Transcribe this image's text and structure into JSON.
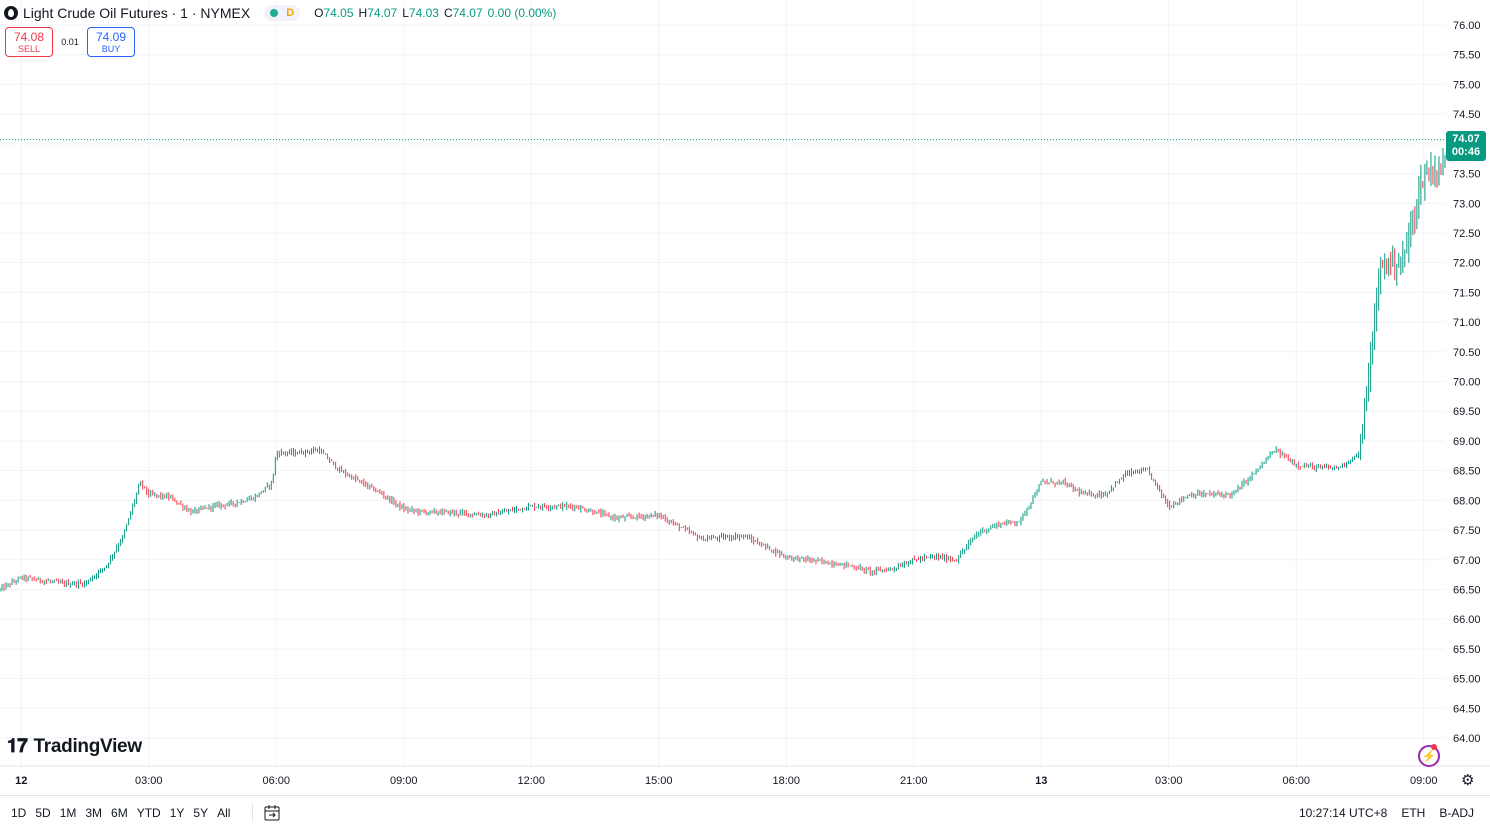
{
  "header": {
    "title": "Light Crude Oil Futures · 1 · NYMEX",
    "status_badge": "D",
    "ohlc": {
      "o_label": "O",
      "o": "74.05",
      "h_label": "H",
      "h": "74.07",
      "l_label": "L",
      "l": "74.03",
      "c_label": "C",
      "c": "74.07",
      "change": "0.00 (0.00%)"
    }
  },
  "trade": {
    "sell_price": "74.08",
    "sell_label": "SELL",
    "spread": "0.01",
    "buy_price": "74.09",
    "buy_label": "BUY"
  },
  "price_tag": {
    "price": "74.07",
    "countdown": "00:46"
  },
  "logo": "TradingView",
  "bottom_bar": {
    "ranges": [
      "1D",
      "5D",
      "1M",
      "3M",
      "6M",
      "YTD",
      "1Y",
      "5Y",
      "All"
    ],
    "time": "10:27:14 UTC+8",
    "session": "ETH",
    "adjustment": "B-ADJ"
  },
  "colors": {
    "up": "#089981",
    "down": "#f23645",
    "grid": "#f0f3fa",
    "text": "#131722"
  },
  "chart_data": {
    "type": "candlestick",
    "ylim": [
      64.0,
      76.0
    ],
    "y_ticks": [
      "76.00",
      "75.50",
      "75.00",
      "74.50",
      "74.00",
      "73.50",
      "73.00",
      "72.50",
      "72.00",
      "71.50",
      "71.00",
      "70.50",
      "70.00",
      "69.50",
      "69.00",
      "68.50",
      "68.00",
      "67.50",
      "67.00",
      "66.50",
      "66.00",
      "65.50",
      "65.00",
      "64.50",
      "64.00"
    ],
    "x_ticks": [
      "12",
      "03:00",
      "06:00",
      "09:00",
      "12:00",
      "15:00",
      "18:00",
      "21:00",
      "13",
      "03:00",
      "06:00",
      "09:00"
    ],
    "x_range_hours": [
      -0.5,
      33.5
    ],
    "last_price": 74.07,
    "path_hours": [
      -0.5,
      0,
      1,
      1.5,
      2,
      2.4,
      2.8,
      3,
      3.5,
      4,
      4.5,
      5,
      5.5,
      5.9,
      6,
      6.5,
      7,
      7.5,
      8,
      8.5,
      9,
      9.5,
      10,
      11,
      12,
      13,
      14,
      15,
      16,
      17,
      18,
      19,
      19.5,
      20,
      20.5,
      21,
      21.5,
      22,
      22.5,
      23,
      23.5,
      24,
      24.5,
      25,
      25.5,
      26,
      26.5,
      27,
      27.5,
      28,
      28.5,
      29,
      29.5,
      30,
      30.5,
      31,
      31.5,
      32,
      32.5,
      33,
      33.5
    ],
    "path_prices": [
      66.5,
      66.7,
      66.6,
      66.6,
      66.9,
      67.4,
      68.3,
      68.1,
      68.05,
      67.8,
      67.9,
      67.95,
      68.05,
      68.3,
      68.8,
      68.8,
      68.85,
      68.5,
      68.3,
      68.1,
      67.85,
      67.8,
      67.8,
      67.75,
      67.9,
      67.9,
      67.7,
      67.75,
      67.35,
      67.4,
      67.05,
      66.95,
      66.9,
      66.8,
      66.85,
      67.0,
      67.05,
      67.0,
      67.45,
      67.6,
      67.65,
      68.3,
      68.3,
      68.1,
      68.1,
      68.45,
      68.5,
      67.9,
      68.1,
      68.1,
      68.1,
      68.45,
      68.85,
      68.6,
      68.55,
      68.55,
      68.8,
      72.0,
      72.0,
      73.5,
      73.6
    ]
  }
}
